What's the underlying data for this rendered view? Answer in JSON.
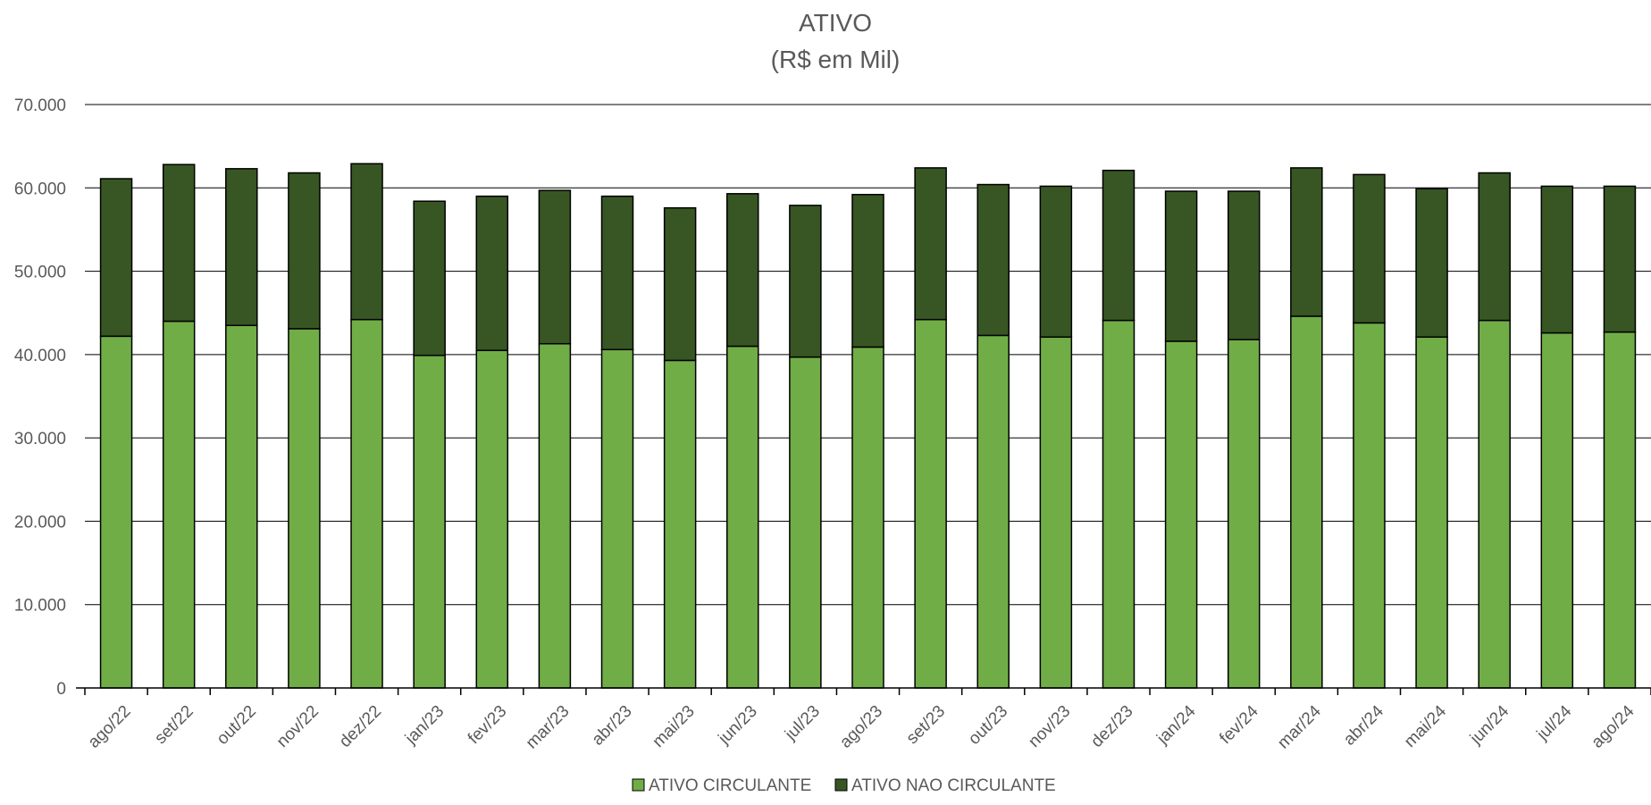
{
  "chart_data": {
    "type": "bar",
    "stacked": true,
    "title": "ATIVO",
    "subtitle": "(R$ em Mil)",
    "xlabel": "",
    "ylabel": "",
    "ylim": [
      0,
      70000
    ],
    "yticks": [
      0,
      10000,
      20000,
      30000,
      40000,
      50000,
      60000,
      70000
    ],
    "ytick_labels": [
      "0",
      "10.000",
      "20.000",
      "30.000",
      "40.000",
      "50.000",
      "60.000",
      "70.000"
    ],
    "grid": true,
    "legend_position": "bottom",
    "categories": [
      "ago/22",
      "set/22",
      "out/22",
      "nov/22",
      "dez/22",
      "jan/23",
      "fev/23",
      "mar/23",
      "abr/23",
      "mai/23",
      "jun/23",
      "jul/23",
      "ago/23",
      "set/23",
      "out/23",
      "nov/23",
      "dez/23",
      "jan/24",
      "fev/24",
      "mar/24",
      "abr/24",
      "mai/24",
      "jun/24",
      "jul/24",
      "ago/24"
    ],
    "series": [
      {
        "name": "ATIVO CIRCULANTE",
        "color": "#70ad47",
        "values": [
          42200,
          44000,
          43500,
          43100,
          44200,
          39900,
          40500,
          41300,
          40600,
          39300,
          41000,
          39700,
          40900,
          44200,
          42300,
          42100,
          44100,
          41600,
          41800,
          44600,
          43800,
          42100,
          44100,
          42600,
          42700
        ]
      },
      {
        "name": "ATIVO NAO CIRCULANTE",
        "color": "#375623",
        "values": [
          18900,
          18800,
          18800,
          18700,
          18700,
          18500,
          18500,
          18400,
          18400,
          18300,
          18300,
          18200,
          18300,
          18200,
          18100,
          18100,
          18000,
          18000,
          17800,
          17800,
          17800,
          17800,
          17700,
          17600,
          17500
        ]
      }
    ]
  },
  "colors": {
    "axis_text": "#595959",
    "title_text": "#595959",
    "gridline": "#000000",
    "bar_outline": "#000000"
  }
}
